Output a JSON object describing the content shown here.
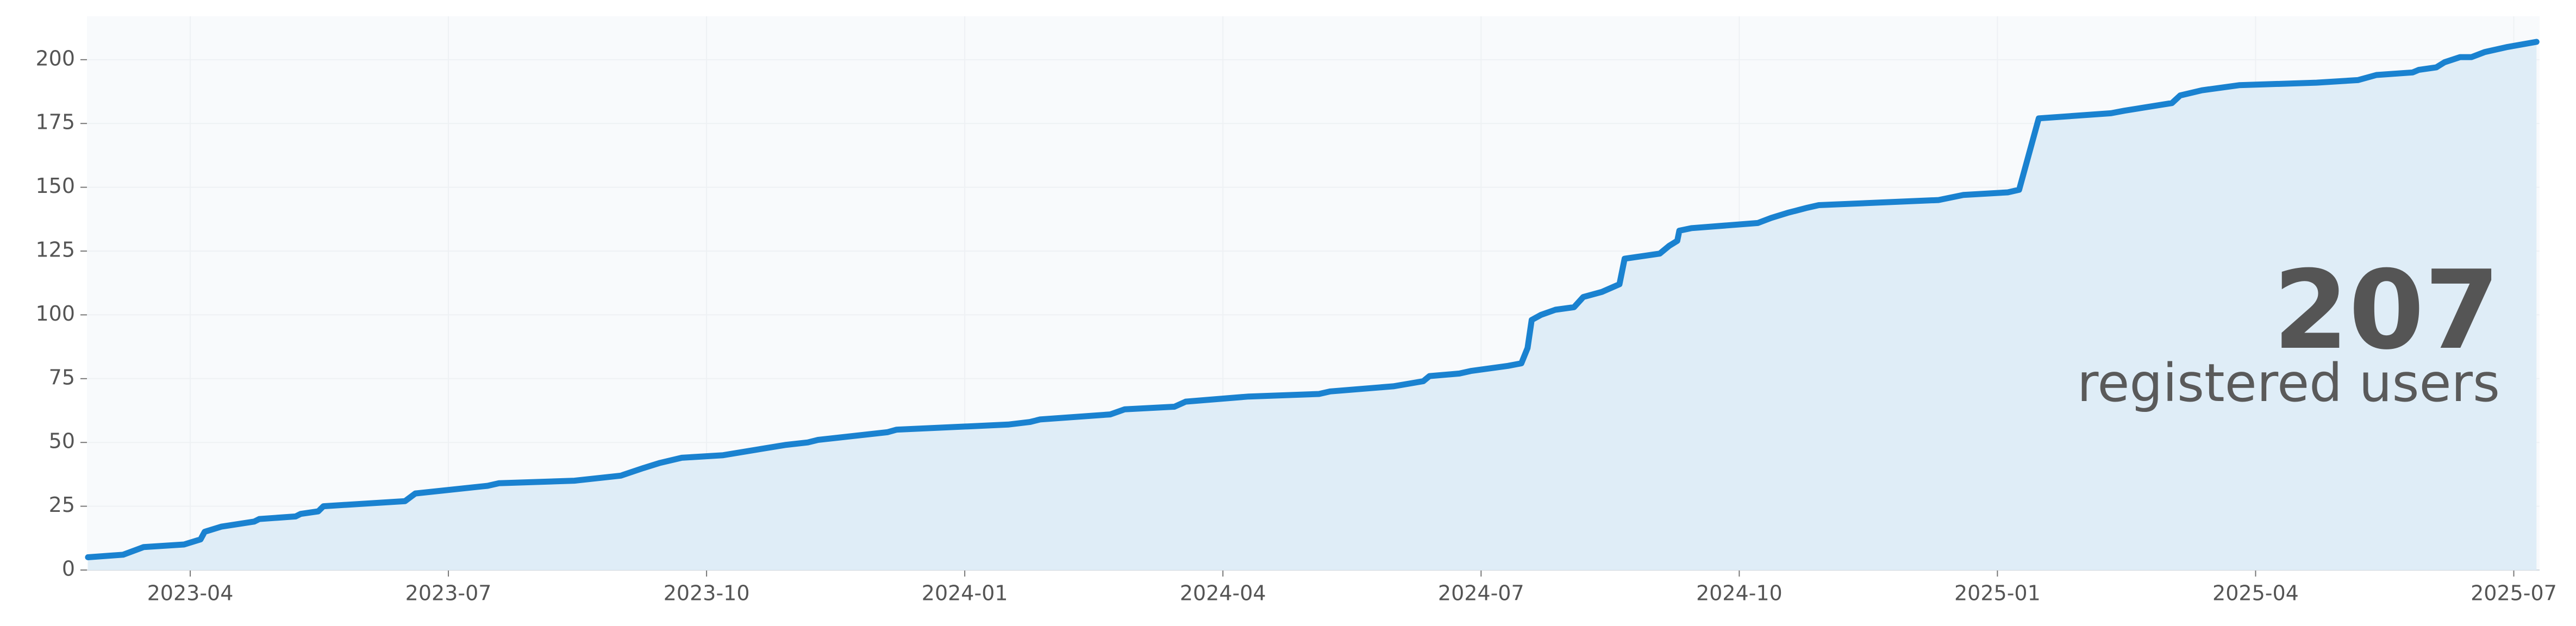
{
  "chart_data": {
    "type": "area-line",
    "headline": "207",
    "headline_label": "registered users",
    "color": "#1a82d0",
    "fill_color": "#dfedf7",
    "headline_color": "#0a74c9",
    "grid": true,
    "x": [
      2023.151,
      2023.185,
      2023.205,
      2023.244,
      2023.26,
      2023.264,
      2023.28,
      2023.312,
      2023.317,
      2023.352,
      2023.357,
      2023.374,
      2023.379,
      2023.458,
      2023.468,
      2023.538,
      2023.549,
      2023.622,
      2023.667,
      2023.689,
      2023.705,
      2023.726,
      2023.766,
      2023.826,
      2023.848,
      2023.858,
      2023.925,
      2023.934,
      2024.042,
      2024.063,
      2024.073,
      2024.141,
      2024.155,
      2024.203,
      2024.214,
      2024.275,
      2024.343,
      2024.354,
      2024.415,
      2024.444,
      2024.45,
      2024.479,
      2024.49,
      2024.526,
      2024.539,
      2024.545,
      2024.549,
      2024.558,
      2024.572,
      2024.59,
      2024.599,
      2024.617,
      2024.634,
      2024.639,
      2024.673,
      2024.682,
      2024.69,
      2024.692,
      2024.704,
      2024.768,
      2024.781,
      2024.797,
      2024.816,
      2024.827,
      2024.943,
      2024.967,
      2025.01,
      2025.021,
      2025.04,
      2025.11,
      2025.123,
      2025.169,
      2025.177,
      2025.198,
      2025.234,
      2025.309,
      2025.349,
      2025.367,
      2025.402,
      2025.408,
      2025.425,
      2025.433,
      2025.448,
      2025.459,
      2025.472,
      2025.494,
      2025.522
    ],
    "values": [
      5,
      6,
      9,
      10,
      12,
      15,
      17,
      19,
      20,
      21,
      22,
      23,
      25,
      27,
      30,
      33,
      34,
      35,
      37,
      40,
      42,
      44,
      45,
      49,
      50,
      51,
      54,
      55,
      57,
      58,
      59,
      61,
      63,
      64,
      66,
      68,
      69,
      70,
      72,
      74,
      76,
      77,
      78,
      80,
      81,
      87,
      98,
      100,
      102,
      103,
      107,
      109,
      112,
      122,
      124,
      127,
      129,
      133,
      134,
      136,
      138,
      140,
      142,
      143,
      145,
      147,
      148,
      149,
      177,
      179,
      180,
      183,
      186,
      188,
      190,
      191,
      192,
      194,
      195,
      196,
      197,
      199,
      201,
      201,
      203,
      205,
      207
    ],
    "xlim": [
      2023.15,
      2025.525
    ],
    "xticks": [
      {
        "value": 2023.25,
        "label": "2023-04"
      },
      {
        "value": 2023.5,
        "label": "2023-07"
      },
      {
        "value": 2023.75,
        "label": "2023-10"
      },
      {
        "value": 2024.0,
        "label": "2024-01"
      },
      {
        "value": 2024.25,
        "label": "2024-04"
      },
      {
        "value": 2024.5,
        "label": "2024-07"
      },
      {
        "value": 2024.75,
        "label": "2024-10"
      },
      {
        "value": 2025.0,
        "label": "2025-01"
      },
      {
        "value": 2025.25,
        "label": "2025-04"
      },
      {
        "value": 2025.5,
        "label": "2025-07"
      }
    ],
    "ylim": [
      0,
      217
    ],
    "yticks": [
      0,
      25,
      50,
      75,
      100,
      125,
      150,
      175,
      200
    ]
  }
}
